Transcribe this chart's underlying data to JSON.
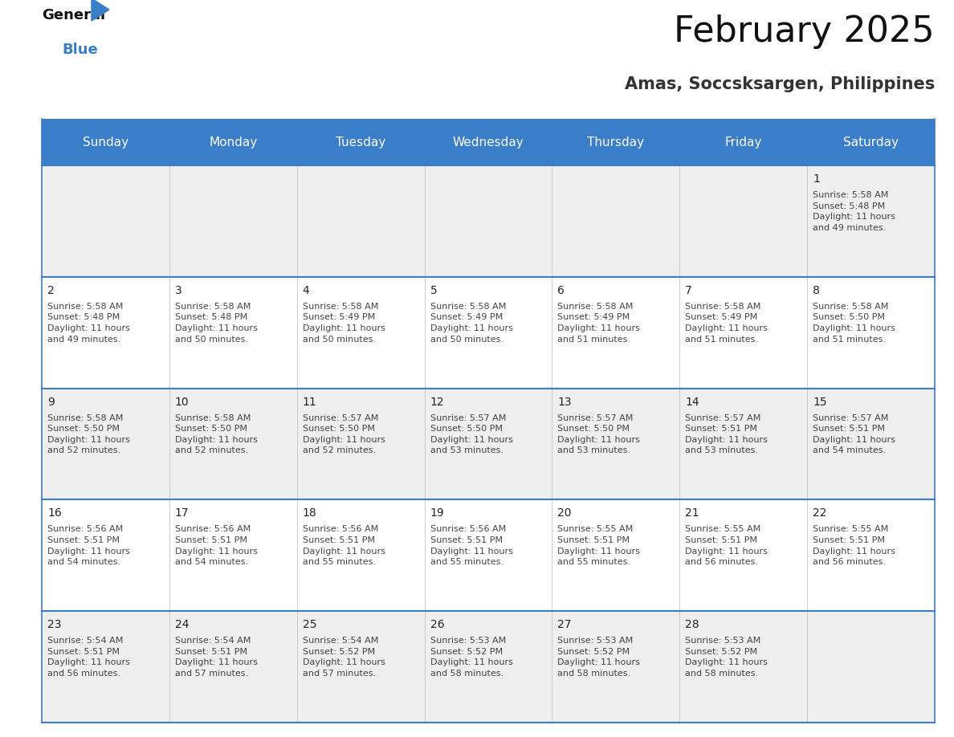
{
  "title": "February 2025",
  "subtitle": "Amas, Soccsksargen, Philippines",
  "days_of_week": [
    "Sunday",
    "Monday",
    "Tuesday",
    "Wednesday",
    "Thursday",
    "Friday",
    "Saturday"
  ],
  "header_bg": "#3A7DC9",
  "header_text": "#FFFFFF",
  "cell_bg_odd": "#EFEFEF",
  "cell_bg_even": "#FFFFFF",
  "separator_color": "#3A7DC9",
  "day_number_color": "#222222",
  "data_text_color": "#444444",
  "calendar_data": [
    {
      "day": 1,
      "col": 6,
      "row": 0,
      "sunrise": "5:58 AM",
      "sunset": "5:48 PM",
      "daylight": "11 hours\nand 49 minutes."
    },
    {
      "day": 2,
      "col": 0,
      "row": 1,
      "sunrise": "5:58 AM",
      "sunset": "5:48 PM",
      "daylight": "11 hours\nand 49 minutes."
    },
    {
      "day": 3,
      "col": 1,
      "row": 1,
      "sunrise": "5:58 AM",
      "sunset": "5:48 PM",
      "daylight": "11 hours\nand 50 minutes."
    },
    {
      "day": 4,
      "col": 2,
      "row": 1,
      "sunrise": "5:58 AM",
      "sunset": "5:49 PM",
      "daylight": "11 hours\nand 50 minutes."
    },
    {
      "day": 5,
      "col": 3,
      "row": 1,
      "sunrise": "5:58 AM",
      "sunset": "5:49 PM",
      "daylight": "11 hours\nand 50 minutes."
    },
    {
      "day": 6,
      "col": 4,
      "row": 1,
      "sunrise": "5:58 AM",
      "sunset": "5:49 PM",
      "daylight": "11 hours\nand 51 minutes."
    },
    {
      "day": 7,
      "col": 5,
      "row": 1,
      "sunrise": "5:58 AM",
      "sunset": "5:49 PM",
      "daylight": "11 hours\nand 51 minutes."
    },
    {
      "day": 8,
      "col": 6,
      "row": 1,
      "sunrise": "5:58 AM",
      "sunset": "5:50 PM",
      "daylight": "11 hours\nand 51 minutes."
    },
    {
      "day": 9,
      "col": 0,
      "row": 2,
      "sunrise": "5:58 AM",
      "sunset": "5:50 PM",
      "daylight": "11 hours\nand 52 minutes."
    },
    {
      "day": 10,
      "col": 1,
      "row": 2,
      "sunrise": "5:58 AM",
      "sunset": "5:50 PM",
      "daylight": "11 hours\nand 52 minutes."
    },
    {
      "day": 11,
      "col": 2,
      "row": 2,
      "sunrise": "5:57 AM",
      "sunset": "5:50 PM",
      "daylight": "11 hours\nand 52 minutes."
    },
    {
      "day": 12,
      "col": 3,
      "row": 2,
      "sunrise": "5:57 AM",
      "sunset": "5:50 PM",
      "daylight": "11 hours\nand 53 minutes."
    },
    {
      "day": 13,
      "col": 4,
      "row": 2,
      "sunrise": "5:57 AM",
      "sunset": "5:50 PM",
      "daylight": "11 hours\nand 53 minutes."
    },
    {
      "day": 14,
      "col": 5,
      "row": 2,
      "sunrise": "5:57 AM",
      "sunset": "5:51 PM",
      "daylight": "11 hours\nand 53 minutes."
    },
    {
      "day": 15,
      "col": 6,
      "row": 2,
      "sunrise": "5:57 AM",
      "sunset": "5:51 PM",
      "daylight": "11 hours\nand 54 minutes."
    },
    {
      "day": 16,
      "col": 0,
      "row": 3,
      "sunrise": "5:56 AM",
      "sunset": "5:51 PM",
      "daylight": "11 hours\nand 54 minutes."
    },
    {
      "day": 17,
      "col": 1,
      "row": 3,
      "sunrise": "5:56 AM",
      "sunset": "5:51 PM",
      "daylight": "11 hours\nand 54 minutes."
    },
    {
      "day": 18,
      "col": 2,
      "row": 3,
      "sunrise": "5:56 AM",
      "sunset": "5:51 PM",
      "daylight": "11 hours\nand 55 minutes."
    },
    {
      "day": 19,
      "col": 3,
      "row": 3,
      "sunrise": "5:56 AM",
      "sunset": "5:51 PM",
      "daylight": "11 hours\nand 55 minutes."
    },
    {
      "day": 20,
      "col": 4,
      "row": 3,
      "sunrise": "5:55 AM",
      "sunset": "5:51 PM",
      "daylight": "11 hours\nand 55 minutes."
    },
    {
      "day": 21,
      "col": 5,
      "row": 3,
      "sunrise": "5:55 AM",
      "sunset": "5:51 PM",
      "daylight": "11 hours\nand 56 minutes."
    },
    {
      "day": 22,
      "col": 6,
      "row": 3,
      "sunrise": "5:55 AM",
      "sunset": "5:51 PM",
      "daylight": "11 hours\nand 56 minutes."
    },
    {
      "day": 23,
      "col": 0,
      "row": 4,
      "sunrise": "5:54 AM",
      "sunset": "5:51 PM",
      "daylight": "11 hours\nand 56 minutes."
    },
    {
      "day": 24,
      "col": 1,
      "row": 4,
      "sunrise": "5:54 AM",
      "sunset": "5:51 PM",
      "daylight": "11 hours\nand 57 minutes."
    },
    {
      "day": 25,
      "col": 2,
      "row": 4,
      "sunrise": "5:54 AM",
      "sunset": "5:52 PM",
      "daylight": "11 hours\nand 57 minutes."
    },
    {
      "day": 26,
      "col": 3,
      "row": 4,
      "sunrise": "5:53 AM",
      "sunset": "5:52 PM",
      "daylight": "11 hours\nand 58 minutes."
    },
    {
      "day": 27,
      "col": 4,
      "row": 4,
      "sunrise": "5:53 AM",
      "sunset": "5:52 PM",
      "daylight": "11 hours\nand 58 minutes."
    },
    {
      "day": 28,
      "col": 5,
      "row": 4,
      "sunrise": "5:53 AM",
      "sunset": "5:52 PM",
      "daylight": "11 hours\nand 58 minutes."
    }
  ],
  "logo_color_general": "#111111",
  "logo_color_blue": "#3A7DC9",
  "logo_triangle_color": "#3A7DC9",
  "title_fontsize": 32,
  "subtitle_fontsize": 15,
  "header_fontsize": 11,
  "day_num_fontsize": 10,
  "cell_text_fontsize": 8
}
